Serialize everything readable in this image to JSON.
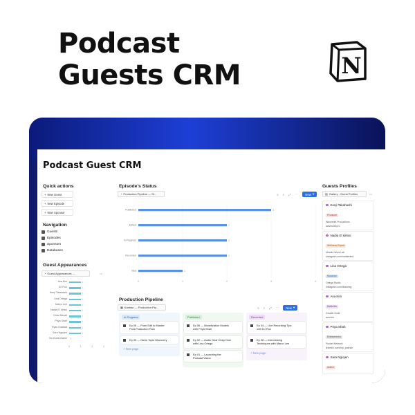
{
  "hero": {
    "title_line1": "Podcast",
    "title_line2": "Guests CRM",
    "logo_letter": "N"
  },
  "colors": {
    "frame_dark": "#0f1a6e",
    "frame_bright": "#1d3fd6",
    "accent_blue": "#2f6fe4",
    "bar_blue": "#5b8fe0",
    "bar_teal": "#6ec3db"
  },
  "page": {
    "title": "Podcast Guest CRM"
  },
  "quick_actions": {
    "heading": "Quick actions",
    "buttons": [
      {
        "label": "New Guest",
        "icon": "plus-icon"
      },
      {
        "label": "New Episode",
        "icon": "plus-icon"
      },
      {
        "label": "New Sponsor",
        "icon": "plus-icon"
      }
    ]
  },
  "navigation": {
    "heading": "Navigation",
    "items": [
      {
        "label": "Guests",
        "icon": "people-icon"
      },
      {
        "label": "Episodes",
        "icon": "mic-icon"
      },
      {
        "label": "Sponsors",
        "icon": "megaphone-icon"
      },
      {
        "label": "Databases",
        "icon": "database-icon"
      }
    ]
  },
  "guest_appearances": {
    "heading": "Guest Appearances",
    "view_label": "Guest Appearances -...",
    "chart_data": {
      "type": "bar",
      "orientation": "horizontal",
      "categories": [
        "Ava Kim",
        "DJ Flux",
        "Kenji Takahashi",
        "Lina Ortega",
        "Marco Lee",
        "Nadia El Idrissi",
        "Omar Benali",
        "Priya Shah",
        "Ryan Haddad",
        "Sara Nguyen",
        "No Guest Name"
      ],
      "values": [
        1,
        1,
        1,
        1,
        1,
        1,
        1,
        1,
        1,
        1,
        0
      ],
      "value_labels": [
        "1",
        "1",
        "1",
        "1",
        "1",
        "1",
        "1",
        "1",
        "1",
        "1",
        "0"
      ],
      "xticks": [
        "0",
        "1",
        "2",
        "3"
      ],
      "xlim": [
        0,
        3
      ]
    }
  },
  "episodes_status": {
    "heading": "Episode's Status",
    "view_label": "Production Pipeline — St...",
    "new_label": "New",
    "chart_data": {
      "type": "bar",
      "orientation": "horizontal",
      "categories": [
        "Published",
        "Edited",
        "In Progress",
        "Recorded",
        "Idea"
      ],
      "values": [
        3,
        2,
        2,
        2,
        1
      ],
      "value_labels": [
        "3",
        "2",
        "2",
        "2",
        "1"
      ],
      "xticks": [
        "0",
        "1",
        "2",
        "3",
        "4"
      ],
      "xlim": [
        0,
        4
      ]
    }
  },
  "production_pipeline": {
    "heading": "Production Pipeline",
    "view_label": "Kanban — Production Pip...",
    "new_label": "New",
    "columns": [
      {
        "name": "In Progress",
        "tag_bg": "#d8e6f7",
        "tag_fg": "#2b5d9c",
        "col_bg": "#f1f6fc",
        "cards": [
          {
            "lines": [
              "Ep 05 — From Edit to Master:",
              "Post-Production Flow"
            ]
          },
          {
            "lines": [
              "Ep 09 — Niche Topic Discovery"
            ]
          }
        ],
        "new_page": "+ New page"
      },
      {
        "name": "Published",
        "tag_bg": "#d9efdd",
        "tag_fg": "#2e7d3c",
        "col_bg": "#f1f8f2",
        "cards": [
          {
            "lines": [
              "Ep 06 — Monetization Models",
              "with Priya Shah"
            ]
          },
          {
            "lines": [
              "Ep 02 — Audio Gear Deep Dive",
              "with Lina Ortega"
            ]
          },
          {
            "lines": [
              "Ep 01 — Launching the",
              "Podcast Vision"
            ]
          }
        ],
        "new_page": ""
      },
      {
        "name": "Recorded",
        "tag_bg": "#ecdcf4",
        "tag_fg": "#7a3a9c",
        "col_bg": "#f8f2fb",
        "cards": [
          {
            "lines": [
              "Ep 04 — Live Recording Tips",
              "with DJ Flux"
            ]
          },
          {
            "lines": [
              "Ep 08 — Interviewing",
              "Techniques with Marco Lee"
            ]
          }
        ],
        "new_page": "+ New page"
      }
    ]
  },
  "guest_profiles": {
    "heading": "Guests Profiles",
    "view_label": "Gallery - Guest Profiles",
    "cards": [
      {
        "name": "Kenji Takahashi",
        "tag": "Producer",
        "tag_bg": "#fbe0e0",
        "tag_fg": "#b23a3a",
        "line1": "Waveshift Productions",
        "line2": "waveshift.pro"
      },
      {
        "name": "Nadia El Idrissi",
        "tag": "Wellness Expert",
        "tag_bg": "#fde6cf",
        "tag_fg": "#a55a12",
        "line1": "Mindful Work Lab",
        "line2": "instagram.com/nadiamind"
      },
      {
        "name": "Lina Ortega",
        "tag": "Musician",
        "tag_bg": "#d8e6f7",
        "tag_fg": "#2b5d9c",
        "line1": "Ortega Studio",
        "line2": "instagram.com/linaorteg"
      },
      {
        "name": "Ava Kim",
        "tag": "Marketer",
        "tag_bg": "#ecdcf4",
        "tag_fg": "#7a3a9c",
        "line1": "Growth Guild",
        "line2": "ava.link"
      },
      {
        "name": "Priya Shah",
        "tag": "Entrepreneur",
        "tag_bg": "#e6e6e6",
        "tag_fg": "#555555",
        "line1": "Pocket Network",
        "line2": "linkedin.com/in/p_yashah"
      },
      {
        "name": "Sara Nguyen",
        "tag": "Author",
        "tag_bg": "#fbe0e0",
        "tag_fg": "#b23a3a",
        "line1": "",
        "line2": ""
      }
    ]
  }
}
